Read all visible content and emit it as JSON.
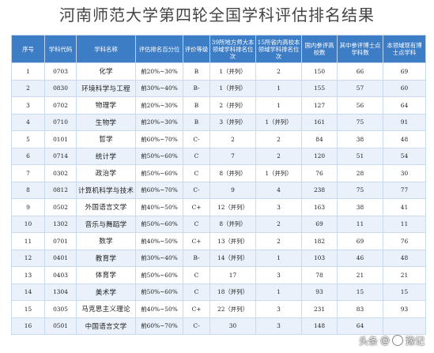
{
  "title": "河南师范大学第四轮全国学科评估排名结果",
  "headers": [
    "序号",
    "学科代码",
    "学科名称",
    "评估排名百分位",
    "评价等级",
    "39所地方师大本领域学科排名位次",
    "15所省内高校本领域学科排名位次",
    "国内参评高校数",
    "其中参评博士点学科数",
    "本领域现有博士点学科"
  ],
  "rows": [
    [
      "1",
      "0703",
      "化学",
      "前20%~30%",
      "B",
      "1（并列）",
      "2",
      "150",
      "66",
      "69"
    ],
    [
      "2",
      "0830",
      "环境科学与工程",
      "前30%~40%",
      "B-",
      "1（并列）",
      "1",
      "155",
      "57",
      "60"
    ],
    [
      "3",
      "0702",
      "物理学",
      "前20%~30%",
      "B",
      "2（并列）",
      "1",
      "127",
      "56",
      "64"
    ],
    [
      "4",
      "0710",
      "生物学",
      "前20%~30%",
      "B",
      "3（并列）",
      "1（并列）",
      "161",
      "75",
      "91"
    ],
    [
      "5",
      "0101",
      "哲学",
      "前60%~70%",
      "C-",
      "2",
      "2",
      "84",
      "38",
      "48"
    ],
    [
      "6",
      "0714",
      "统计学",
      "前50%~60%",
      "C",
      "7",
      "2",
      "120",
      "51",
      "54"
    ],
    [
      "7",
      "0302",
      "政治学",
      "前50%~60%",
      "C",
      "8（并列）",
      "1（并列）",
      "76",
      "28",
      "30"
    ],
    [
      "8",
      "0812",
      "计算机科学与技术",
      "前60%~70%",
      "C-",
      "9",
      "4",
      "238",
      "75",
      "77"
    ],
    [
      "9",
      "0502",
      "外国语言文学",
      "前40%~50%",
      "C+",
      "12（并列）",
      "3",
      "163",
      "38",
      "41"
    ],
    [
      "10",
      "1302",
      "音乐与舞蹈学",
      "前50%~60%",
      "C",
      "8（并列）",
      "2",
      "69",
      "11",
      "11"
    ],
    [
      "11",
      "0701",
      "数学",
      "前40%~50%",
      "C+",
      "13（并列）",
      "2",
      "182",
      "69",
      "76"
    ],
    [
      "12",
      "0401",
      "教育学",
      "前30%~40%",
      "B-",
      "14（并列）",
      "1",
      "103",
      "46",
      "48"
    ],
    [
      "13",
      "0403",
      "体育学",
      "前50%~60%",
      "C",
      "17",
      "3",
      "78",
      "21",
      "21"
    ],
    [
      "14",
      "1304",
      "美术学",
      "前50%~60%",
      "C",
      "18（并列）",
      "1",
      "93",
      "15",
      "15"
    ],
    [
      "15",
      "0305",
      "马克思主义理论",
      "前40%~50%",
      "C+",
      "22（并列）",
      "3",
      "231",
      "83",
      "93"
    ],
    [
      "16",
      "0501",
      "中国语言文学",
      "前60%~70%",
      "C-",
      "30",
      "3",
      "148",
      "64",
      ""
    ]
  ],
  "watermark": {
    "brand": "头条",
    "separator": "@",
    "author": "豫记"
  }
}
